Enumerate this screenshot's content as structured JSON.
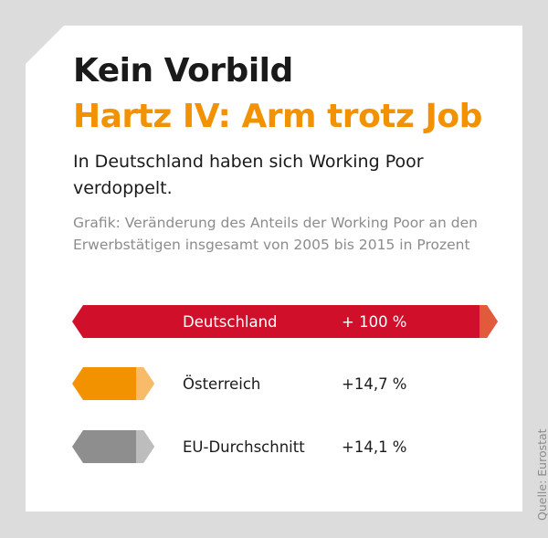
{
  "header": {
    "kicker": "Kein Vorbild",
    "headline": "Hartz IV: Arm trotz Job",
    "subtitle": "In Deutschland haben sich Working Poor verdoppelt.",
    "description": "Grafik: Veränderung des Anteils der Working Poor an den Erwerbstätigen insgesamt von 2005 bis 2015 in Prozent"
  },
  "source": "Quelle: Eurostat",
  "colors": {
    "background": "#dcdcdc",
    "card": "#ffffff",
    "title": "#1a1a1a",
    "accent": "#f39200",
    "muted": "#8c8c8c"
  },
  "chart_data": {
    "type": "bar",
    "title": "",
    "categories": [
      "Deutschland",
      "Österreich",
      "EU-Durchschnitt"
    ],
    "values": [
      100,
      14.7,
      14.1
    ],
    "value_labels": [
      "+ 100 %",
      "+14,7 %",
      "+14,1 %"
    ],
    "bar_colors": [
      "#d0102a",
      "#f39200",
      "#8e8e8e"
    ],
    "tip_colors": [
      "#e15a3c",
      "#f8bb6a",
      "#bdbdbd"
    ],
    "value_unit": "%",
    "orientation": "horizontal",
    "xlim": [
      0,
      100
    ]
  }
}
